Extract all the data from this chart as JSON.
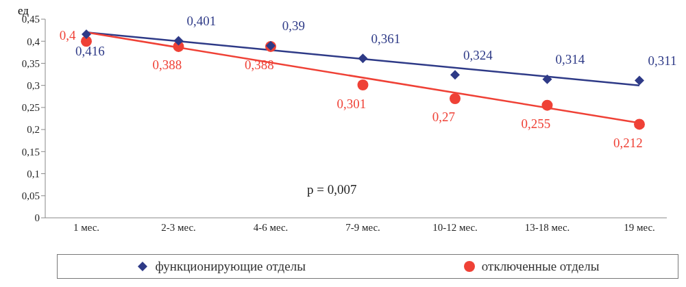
{
  "chart_data": {
    "type": "scatter",
    "ylabel": "ед",
    "categories": [
      "1 мес.",
      "2-3 мес.",
      "4-6 мес.",
      "7-9 мес.",
      "10-12 мес.",
      "13-18 мес.",
      "19 мес."
    ],
    "series": [
      {
        "name": "функционирующие отделы",
        "color": "#2e3a87",
        "marker": "diamond",
        "values": [
          0.416,
          0.401,
          0.39,
          0.361,
          0.324,
          0.314,
          0.311
        ],
        "value_labels": [
          "0,416",
          "0,401",
          "0,39",
          "0,361",
          "0,324",
          "0,314",
          "0,311"
        ]
      },
      {
        "name": "отключенные отделы",
        "color": "#ef4136",
        "marker": "circle",
        "values": [
          0.4,
          0.388,
          0.388,
          0.301,
          0.27,
          0.255,
          0.212
        ],
        "value_labels": [
          "0,4",
          "0,388",
          "0,388",
          "0,301",
          "0,27",
          "0,255",
          "0,212"
        ]
      },
      {
        "type": "line",
        "color": "#2e3a87",
        "values": [
          0.42,
          null,
          null,
          null,
          null,
          null,
          0.3
        ]
      },
      {
        "type": "line",
        "color": "#ef4136",
        "values": [
          0.42,
          null,
          null,
          null,
          null,
          null,
          0.215
        ]
      }
    ],
    "ylim": [
      0,
      0.45
    ],
    "yticks": [
      {
        "value": 0,
        "label": "0"
      },
      {
        "value": 0.05,
        "label": "0,05"
      },
      {
        "value": 0.1,
        "label": "0,1"
      },
      {
        "value": 0.15,
        "label": "0,15"
      },
      {
        "value": 0.2,
        "label": "0,2"
      },
      {
        "value": 0.25,
        "label": "0,25"
      },
      {
        "value": 0.3,
        "label": "0,3"
      },
      {
        "value": 0.35,
        "label": "0,35"
      },
      {
        "value": 0.4,
        "label": "0,4"
      },
      {
        "value": 0.45,
        "label": "0,45"
      }
    ],
    "annotations": [
      "p = 0,007"
    ],
    "grid": false,
    "legend": "bottom"
  }
}
